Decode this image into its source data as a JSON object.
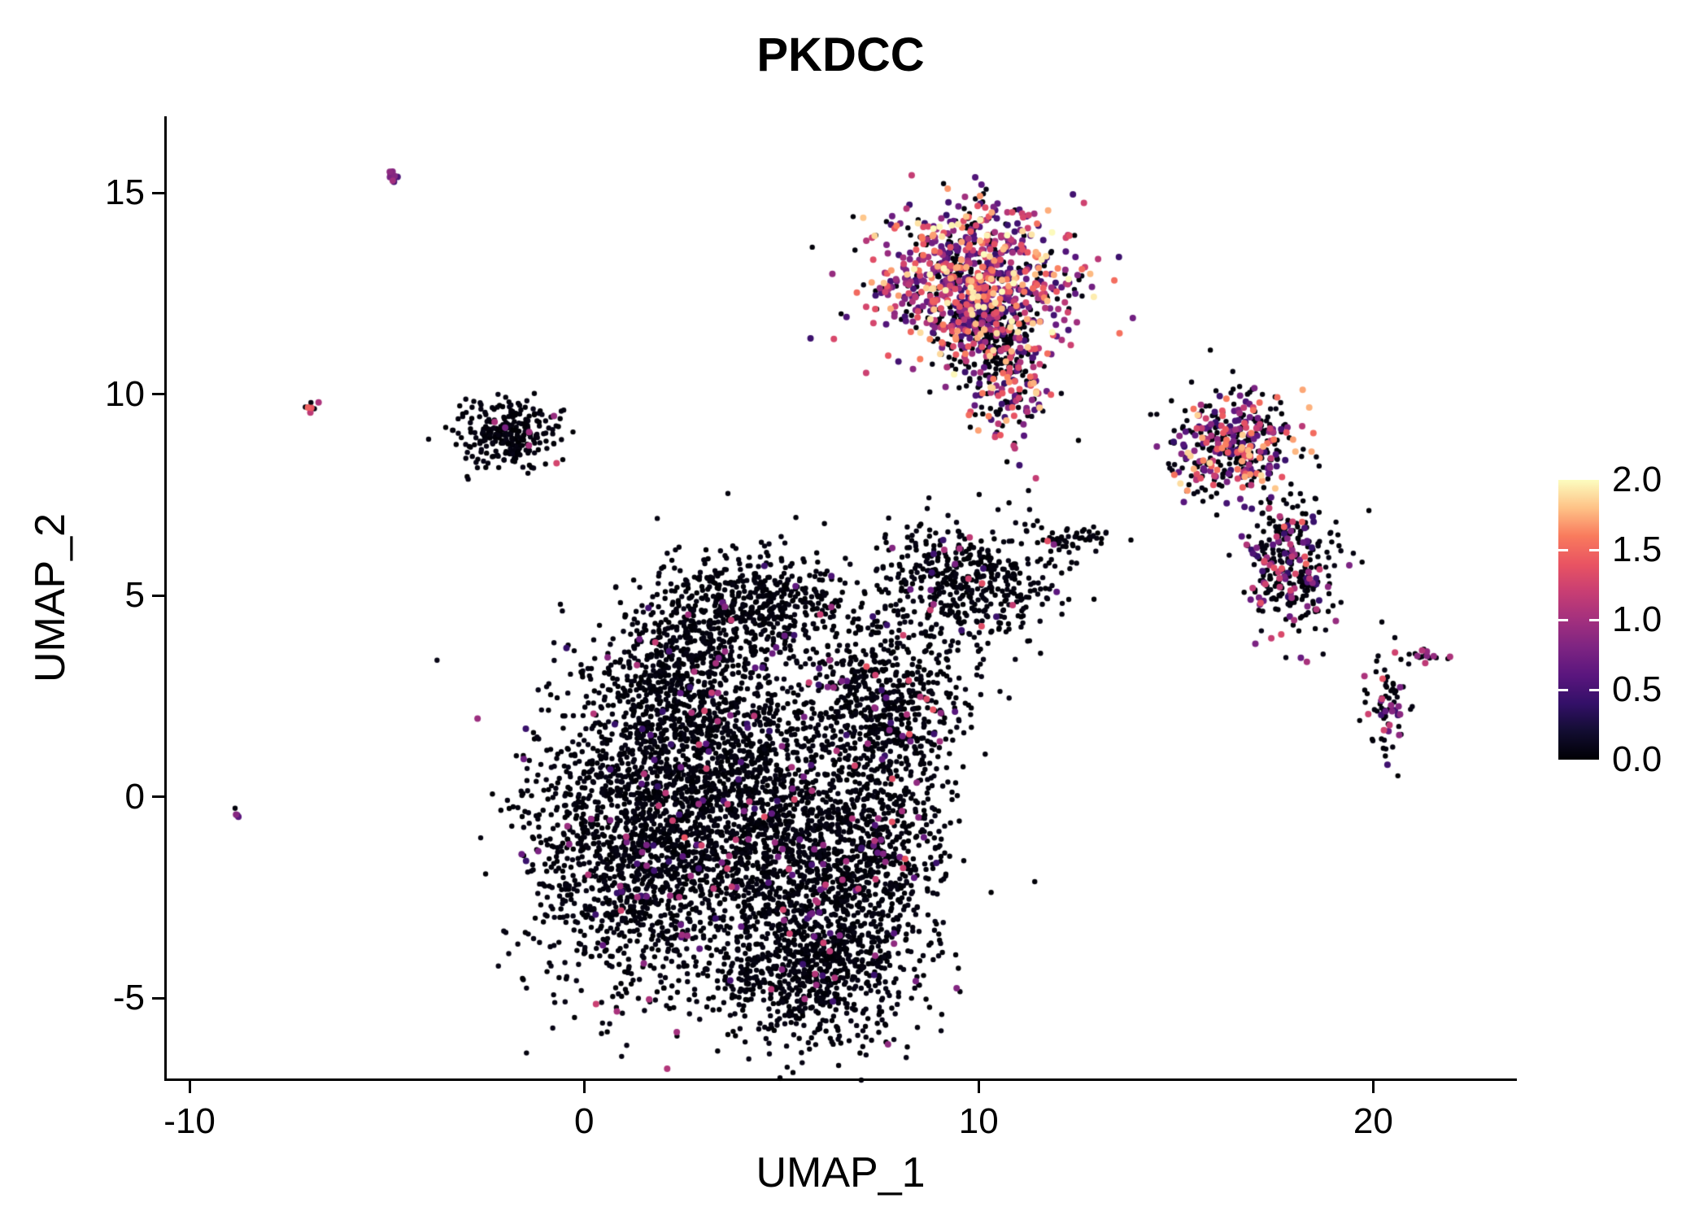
{
  "chart_data": {
    "type": "scatter",
    "title": "PKDCC",
    "xlabel": "UMAP_1",
    "ylabel": "UMAP_2",
    "xlim": [
      -10.6,
      23.6
    ],
    "ylim": [
      -7.0,
      16.9
    ],
    "x_ticks": [
      -10,
      0,
      10,
      20
    ],
    "y_ticks": [
      -5,
      0,
      5,
      10,
      15
    ],
    "grid": false,
    "legend_position": "right",
    "point_color_meaning": "PKDCC expression level",
    "colorbar": {
      "range": [
        0.0,
        2.0
      ],
      "label_values": [
        2.0,
        1.5,
        1.0,
        0.5,
        0.0
      ],
      "colormap": "magma",
      "stops": [
        [
          0.0,
          "#000004"
        ],
        [
          0.1,
          "#120d31"
        ],
        [
          0.2,
          "#331068"
        ],
        [
          0.3,
          "#5a167e"
        ],
        [
          0.4,
          "#7d2482"
        ],
        [
          0.5,
          "#a3307e"
        ],
        [
          0.6,
          "#c83e73"
        ],
        [
          0.7,
          "#e95462"
        ],
        [
          0.8,
          "#f97b5d"
        ],
        [
          0.9,
          "#fec287"
        ],
        [
          1.0,
          "#fcfdbf"
        ]
      ]
    },
    "clusters": [
      {
        "name": "main-body-left",
        "n": 1500,
        "cx": 1.3,
        "cy": -1.3,
        "sx": 1.4,
        "sy": 1.9,
        "colored_frac": 0.035,
        "vmin": 0.4,
        "vmax": 1.3
      },
      {
        "name": "main-body-core",
        "n": 1300,
        "cx": 4.0,
        "cy": 0.6,
        "sx": 1.7,
        "sy": 1.7,
        "colored_frac": 0.04,
        "vmin": 0.4,
        "vmax": 1.3
      },
      {
        "name": "main-body-mid",
        "n": 600,
        "cx": 5.2,
        "cy": -1.8,
        "sx": 1.3,
        "sy": 1.2,
        "colored_frac": 0.05,
        "vmin": 0.4,
        "vmax": 1.4
      },
      {
        "name": "main-body-bottom",
        "n": 750,
        "cx": 5.8,
        "cy": -4.3,
        "sx": 1.25,
        "sy": 1.0,
        "colored_frac": 0.03,
        "vmin": 0.4,
        "vmax": 1.3
      },
      {
        "name": "main-body-top-arc",
        "n": 550,
        "cx": 4.2,
        "cy": 4.7,
        "sx": 1.3,
        "sy": 0.65,
        "colored_frac": 0.04,
        "vmin": 0.4,
        "vmax": 1.2
      },
      {
        "name": "main-body-upper-left",
        "n": 450,
        "cx": 2.4,
        "cy": 2.9,
        "sx": 1.0,
        "sy": 0.9,
        "colored_frac": 0.04,
        "vmin": 0.4,
        "vmax": 1.2
      },
      {
        "name": "main-body-right",
        "n": 650,
        "cx": 7.4,
        "cy": -1.2,
        "sx": 0.95,
        "sy": 1.6,
        "colored_frac": 0.05,
        "vmin": 0.4,
        "vmax": 1.4
      },
      {
        "name": "main-body-upper-right",
        "n": 520,
        "cx": 7.8,
        "cy": 2.5,
        "sx": 0.95,
        "sy": 1.1,
        "colored_frac": 0.05,
        "vmin": 0.4,
        "vmax": 1.4
      },
      {
        "name": "mid-right-black",
        "n": 480,
        "cx": 9.7,
        "cy": 5.4,
        "sx": 1.15,
        "sy": 0.75,
        "colored_frac": 0.05,
        "vmin": 0.4,
        "vmax": 1.6
      },
      {
        "name": "mid-right-chain",
        "n": 45,
        "cx": 12.4,
        "cy": 6.4,
        "sx": 0.45,
        "sy": 0.15,
        "colored_frac": 0.05,
        "vmin": 0.4,
        "vmax": 1.2
      },
      {
        "name": "top-expressing-main",
        "n": 950,
        "cx": 9.9,
        "cy": 12.7,
        "sx": 1.15,
        "sy": 0.95,
        "colored_frac": 0.72,
        "vmin": 0.4,
        "vmax": 2.0
      },
      {
        "name": "top-expressing-tail",
        "n": 160,
        "cx": 10.7,
        "cy": 10.2,
        "sx": 0.5,
        "sy": 0.75,
        "colored_frac": 0.6,
        "vmin": 0.4,
        "vmax": 1.9
      },
      {
        "name": "top-expressing-spur",
        "n": 28,
        "cx": 9.9,
        "cy": 14.3,
        "sx": 0.18,
        "sy": 0.4,
        "colored_frac": 0.5,
        "vmin": 0.5,
        "vmax": 1.8
      },
      {
        "name": "top-cluster-black-patch",
        "n": 140,
        "cx": 10.3,
        "cy": 11.4,
        "sx": 0.55,
        "sy": 0.5,
        "colored_frac": 0.15,
        "vmin": 0.4,
        "vmax": 1.6
      },
      {
        "name": "left-black-cluster",
        "n": 270,
        "cx": -1.9,
        "cy": 9.0,
        "sx": 0.6,
        "sy": 0.45,
        "colored_frac": 0.025,
        "vmin": 0.4,
        "vmax": 1.4
      },
      {
        "name": "right-expressing-cluster",
        "n": 400,
        "cx": 16.4,
        "cy": 8.7,
        "sx": 0.8,
        "sy": 0.7,
        "colored_frac": 0.45,
        "vmin": 0.4,
        "vmax": 1.9
      },
      {
        "name": "right-lower-cluster",
        "n": 300,
        "cx": 17.9,
        "cy": 5.7,
        "sx": 0.55,
        "sy": 0.8,
        "colored_frac": 0.3,
        "vmin": 0.4,
        "vmax": 1.5
      },
      {
        "name": "far-right-string",
        "n": 75,
        "cx": 20.4,
        "cy": 2.2,
        "sx": 0.28,
        "sy": 0.75,
        "colored_frac": 0.25,
        "vmin": 0.4,
        "vmax": 1.4
      },
      {
        "name": "far-right-dash",
        "n": 16,
        "cx": 21.4,
        "cy": 3.5,
        "sx": 0.2,
        "sy": 0.1,
        "colored_frac": 0.3,
        "vmin": 0.5,
        "vmax": 1.2
      },
      {
        "name": "satellite-top-left",
        "n": 9,
        "cx": -4.9,
        "cy": 15.4,
        "sx": 0.12,
        "sy": 0.12,
        "colored_frac": 0.7,
        "vmin": 0.4,
        "vmax": 1.0
      },
      {
        "name": "satellite-left",
        "n": 7,
        "cx": -6.9,
        "cy": 9.7,
        "sx": 0.1,
        "sy": 0.12,
        "colored_frac": 0.7,
        "vmin": 0.8,
        "vmax": 1.6
      },
      {
        "name": "satellite-far-left",
        "n": 4,
        "cx": -8.8,
        "cy": -0.4,
        "sx": 0.06,
        "sy": 0.06,
        "colored_frac": 0.75,
        "vmin": 0.5,
        "vmax": 1.0
      }
    ]
  }
}
